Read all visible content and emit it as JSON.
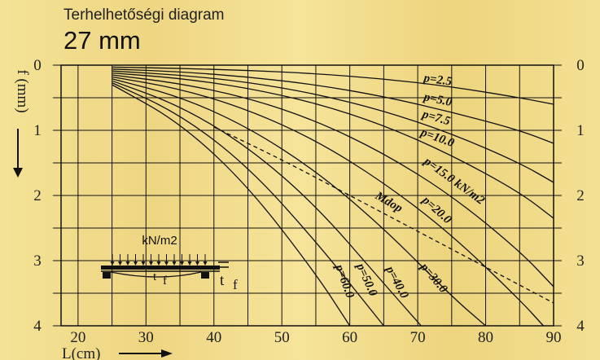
{
  "header": {
    "title": "Terhelhetőségi diagram",
    "subtitle": "27 mm"
  },
  "chart_data": {
    "type": "line",
    "xlabel": "L(cm)",
    "ylabel": "f (mm)",
    "xlim": [
      17.5,
      90
    ],
    "ylim": [
      0,
      4
    ],
    "x_ticks": [
      "20",
      "30",
      "40",
      "50",
      "60",
      "70",
      "80",
      "90"
    ],
    "y_ticks": [
      "0",
      "1",
      "2",
      "3",
      "4"
    ],
    "grid": true,
    "series": [
      {
        "name": "p=2.5",
        "x": [
          25,
          35,
          45,
          55,
          65,
          75,
          85,
          90
        ],
        "y": [
          0.03,
          0.05,
          0.08,
          0.13,
          0.21,
          0.33,
          0.5,
          0.6
        ]
      },
      {
        "name": "p=5.0",
        "x": [
          25,
          35,
          45,
          55,
          65,
          75,
          85,
          90
        ],
        "y": [
          0.06,
          0.1,
          0.18,
          0.3,
          0.48,
          0.72,
          1.0,
          1.2
        ]
      },
      {
        "name": "p=7.5",
        "x": [
          25,
          35,
          45,
          55,
          65,
          75,
          85,
          90
        ],
        "y": [
          0.09,
          0.15,
          0.26,
          0.44,
          0.7,
          1.05,
          1.5,
          1.8
        ]
      },
      {
        "name": "p=10.0",
        "x": [
          25,
          35,
          45,
          55,
          65,
          75,
          85,
          90
        ],
        "y": [
          0.12,
          0.2,
          0.35,
          0.58,
          0.92,
          1.38,
          1.95,
          2.35
        ]
      },
      {
        "name": "p=15.0 kN/m2",
        "x": [
          25,
          35,
          45,
          55,
          65,
          75,
          85,
          90
        ],
        "y": [
          0.15,
          0.28,
          0.5,
          0.85,
          1.35,
          2.0,
          2.85,
          3.4
        ]
      },
      {
        "name": "p=20.0",
        "x": [
          25,
          35,
          45,
          55,
          65,
          75,
          85,
          88.5
        ],
        "y": [
          0.18,
          0.36,
          0.68,
          1.15,
          1.8,
          2.6,
          3.6,
          4.0
        ]
      },
      {
        "name": "p=30.0",
        "x": [
          25,
          35,
          45,
          55,
          65,
          75,
          80
        ],
        "y": [
          0.21,
          0.48,
          0.95,
          1.62,
          2.5,
          3.55,
          4.0
        ]
      },
      {
        "name": "p=40.0",
        "x": [
          25,
          35,
          45,
          55,
          65,
          70.5
        ],
        "y": [
          0.24,
          0.62,
          1.25,
          2.15,
          3.35,
          4.0
        ]
      },
      {
        "name": "p=50.0",
        "x": [
          25,
          35,
          45,
          55,
          65
        ],
        "y": [
          0.27,
          0.75,
          1.55,
          2.7,
          4.0
        ]
      },
      {
        "name": "p=60.0",
        "x": [
          25,
          35,
          45,
          55,
          60
        ],
        "y": [
          0.3,
          0.88,
          1.85,
          3.2,
          4.0
        ]
      },
      {
        "name": "Mdop",
        "dashed": true,
        "x": [
          40,
          50,
          60,
          70,
          80,
          90
        ],
        "y": [
          0.95,
          1.45,
          2.0,
          2.55,
          3.1,
          3.65
        ]
      }
    ]
  },
  "diagram": {
    "load_label": "kN/m2",
    "deflection_label": "f",
    "deflection_symbol": "t"
  }
}
